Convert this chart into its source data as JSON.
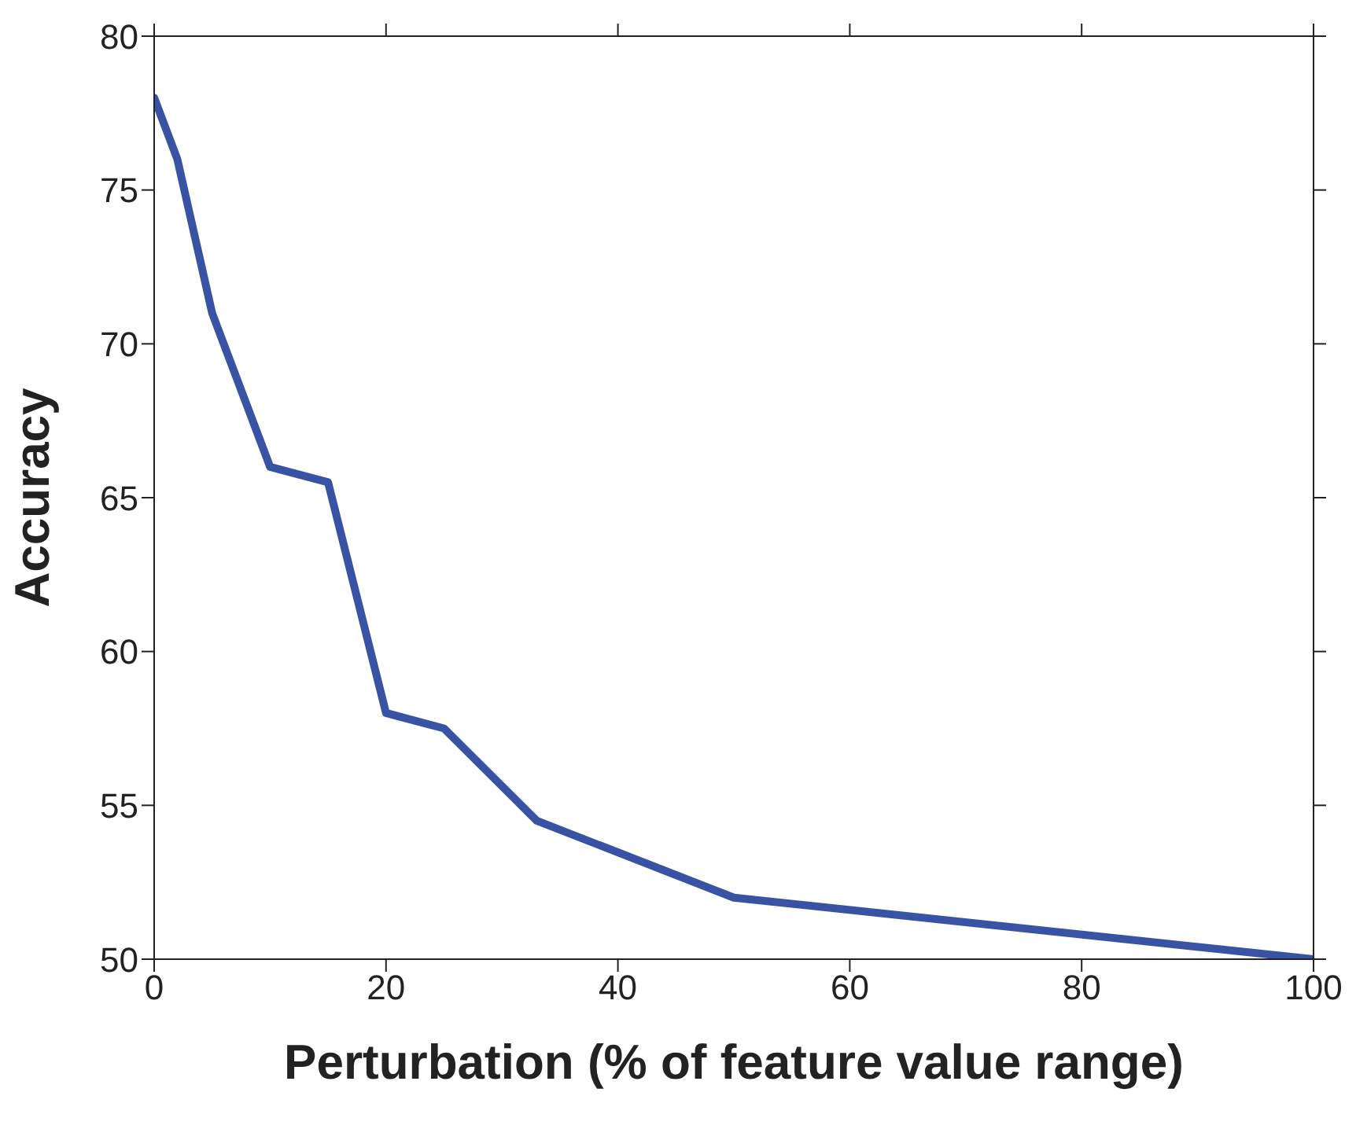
{
  "chart_data": {
    "type": "line",
    "xlabel": "Perturbation (% of feature value range)",
    "ylabel": "Accuracy",
    "x": [
      0,
      2,
      5,
      10,
      15,
      20,
      25,
      33,
      50,
      100
    ],
    "series": [
      {
        "color": "#3953a4",
        "values": [
          78,
          76,
          71,
          66,
          65.5,
          58,
          57.5,
          54.5,
          52,
          50
        ]
      }
    ],
    "xlim": [
      0,
      100
    ],
    "xticks": [
      0,
      20,
      40,
      60,
      80,
      100
    ],
    "ylim": [
      50,
      80
    ],
    "yticks": [
      50,
      55,
      60,
      65,
      70,
      75,
      80
    ],
    "grid": false,
    "legend": false,
    "marker": "none",
    "line_style": "solid"
  }
}
